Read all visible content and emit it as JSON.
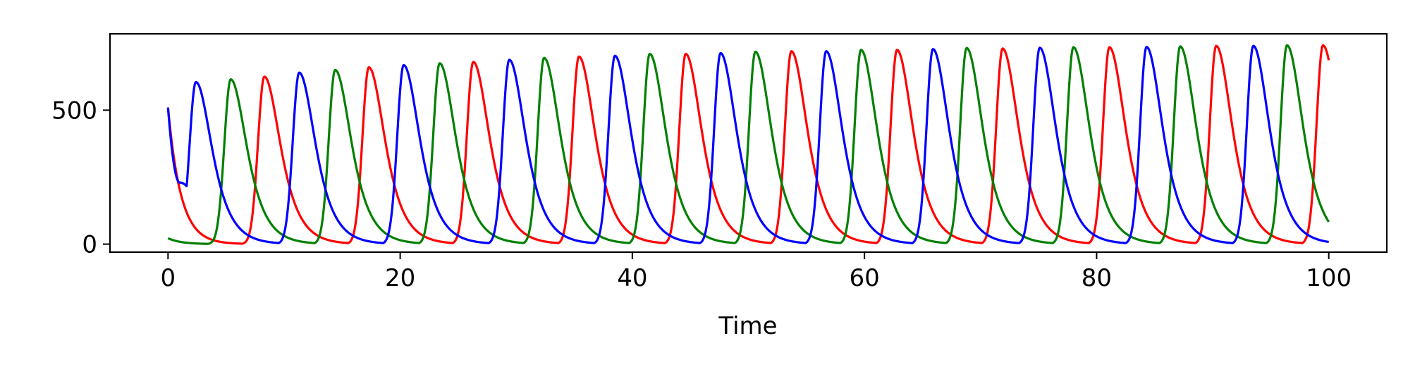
{
  "chart_data": {
    "type": "line",
    "title": "",
    "xlabel": "Time",
    "ylabel": "",
    "xlim": [
      -5,
      105
    ],
    "ylim": [
      -30,
      785
    ],
    "xticks": [
      0,
      20,
      40,
      60,
      80,
      100
    ],
    "yticks": [
      0,
      500
    ],
    "grid": false,
    "legend": "none",
    "period": 9.1,
    "series": [
      {
        "color": "#ff0000",
        "start_value": 510,
        "peak_times": [
          8.3,
          17.3,
          26.3,
          35.4,
          44.6,
          53.7,
          62.8,
          71.9,
          81.1,
          90.3,
          99.5
        ],
        "peak_values": [
          625,
          660,
          680,
          700,
          710,
          720,
          725,
          730,
          735,
          740,
          742
        ],
        "minimum": 0
      },
      {
        "color": "#008000",
        "start_value": 22,
        "peak_times": [
          5.4,
          14.4,
          23.4,
          32.4,
          41.5,
          50.6,
          59.7,
          68.8,
          78.0,
          87.2,
          96.4
        ],
        "peak_values": [
          615,
          650,
          675,
          695,
          710,
          718,
          725,
          732,
          735,
          738,
          742
        ],
        "minimum": 0
      },
      {
        "color": "#0000ff",
        "start_value": 510,
        "first_trough": {
          "x": 1.0,
          "y": 230
        },
        "peak_times": [
          2.4,
          11.3,
          20.3,
          29.4,
          38.5,
          47.6,
          56.7,
          65.9,
          75.1,
          84.3,
          93.5
        ],
        "peak_values": [
          605,
          640,
          668,
          688,
          703,
          713,
          720,
          728,
          733,
          736,
          740
        ],
        "end_value": 10,
        "minimum": 0
      }
    ]
  }
}
